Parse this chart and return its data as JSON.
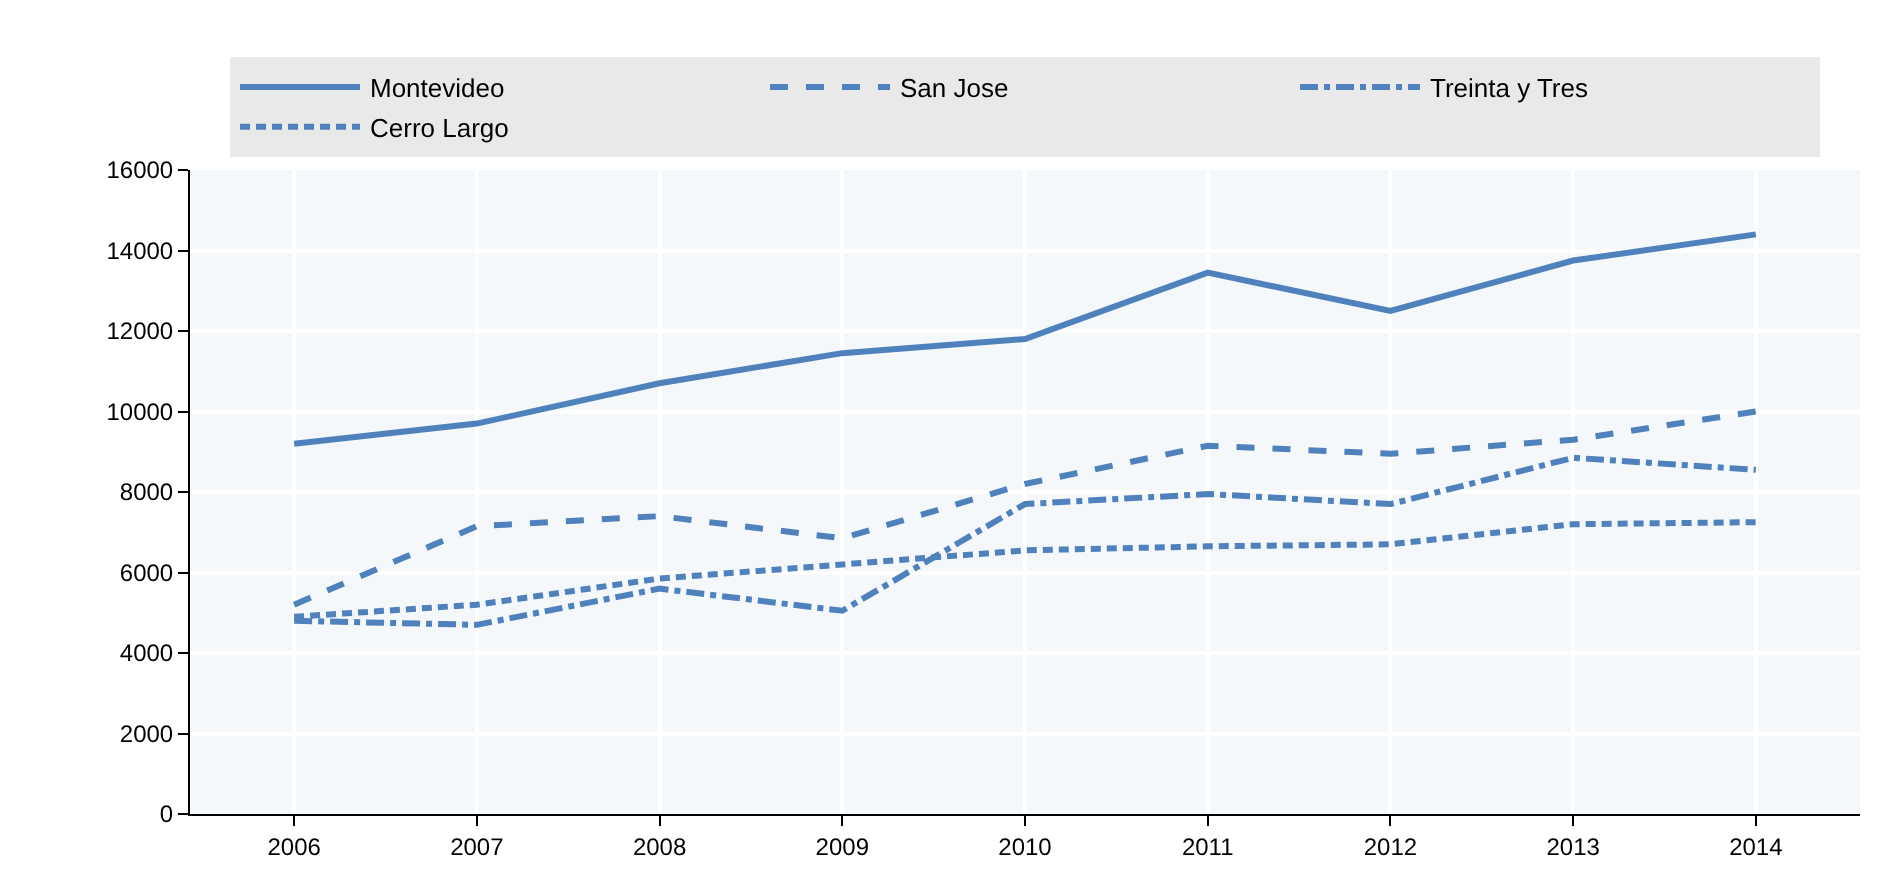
{
  "chart_data": {
    "type": "line",
    "categories": [
      "2006",
      "2007",
      "2008",
      "2009",
      "2010",
      "2011",
      "2012",
      "2013",
      "2014"
    ],
    "series": [
      {
        "name": "Montevideo",
        "color": "#4f81bd",
        "line_style": "solid",
        "values": [
          9200,
          9700,
          10700,
          11450,
          11800,
          13450,
          12500,
          13750,
          14400
        ]
      },
      {
        "name": "San Jose",
        "color": "#4f81bd",
        "line_style": "dashed",
        "values": [
          5200,
          7150,
          7400,
          6850,
          8200,
          9150,
          8950,
          9300,
          10000
        ]
      },
      {
        "name": "Treinta y Tres",
        "color": "#4f81bd",
        "line_style": "dashdot",
        "values": [
          4800,
          4700,
          5600,
          5050,
          7700,
          7950,
          7700,
          8850,
          8550
        ]
      },
      {
        "name": "Cerro Largo",
        "color": "#4f81bd",
        "line_style": "dotted",
        "values": [
          4900,
          5200,
          5850,
          6200,
          6550,
          6650,
          6700,
          7200,
          7250
        ]
      }
    ],
    "ylim": [
      0,
      16000
    ],
    "yticks": [
      0,
      2000,
      4000,
      6000,
      8000,
      10000,
      12000,
      14000,
      16000
    ],
    "grid": true,
    "legend": "top",
    "marker": "none"
  }
}
